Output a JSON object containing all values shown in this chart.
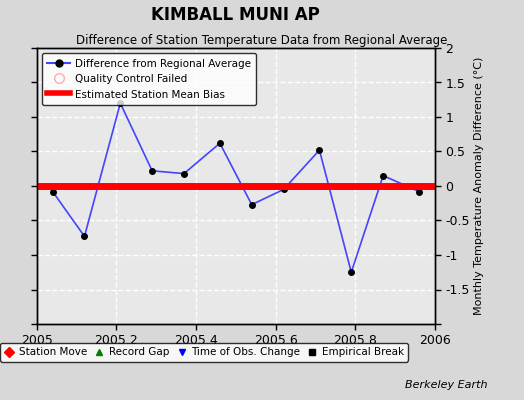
{
  "title": "KIMBALL MUNI AP",
  "subtitle": "Difference of Station Temperature Data from Regional Average",
  "ylabel_right": "Monthly Temperature Anomaly Difference (°C)",
  "credit": "Berkeley Earth",
  "xlim": [
    2005.0,
    2006.0
  ],
  "ylim": [
    -2.0,
    2.0
  ],
  "xticks": [
    2005.0,
    2005.2,
    2005.4,
    2005.6,
    2005.8,
    2006.0
  ],
  "yticks": [
    -2.0,
    -1.5,
    -1.0,
    -0.5,
    0.0,
    0.5,
    1.0,
    1.5,
    2.0
  ],
  "ytick_labels": [
    "",
    "-1.5",
    "-1",
    "-0.5",
    "0",
    "0.5",
    "1",
    "1.5",
    "2"
  ],
  "x_data": [
    2005.04,
    2005.12,
    2005.21,
    2005.29,
    2005.37,
    2005.46,
    2005.54,
    2005.62,
    2005.71,
    2005.79,
    2005.87,
    2005.96
  ],
  "y_data": [
    -0.08,
    -0.73,
    1.2,
    0.22,
    0.18,
    0.62,
    -0.27,
    -0.05,
    0.52,
    -1.25,
    0.15,
    -0.08
  ],
  "bias_value": 0.0,
  "line_color": "#4444ff",
  "marker_color": "black",
  "bias_color": "red",
  "fig_bg_color": "#d8d8d8",
  "plot_bg_color": "#e8e8e8",
  "grid_color": "white"
}
